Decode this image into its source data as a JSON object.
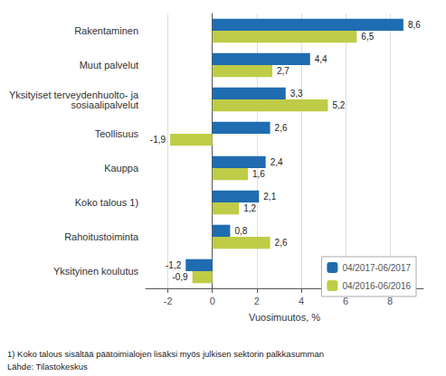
{
  "chart_data": {
    "type": "bar",
    "orientation": "horizontal",
    "categories": [
      "Rakentaminen",
      "Muut palvelut",
      "Yksityiset terveydenhuolto- ja\nsosiaalipalvelut",
      "Teollisuus",
      "Kauppa",
      "Koko talous 1)",
      "Rahoitustoiminta",
      "Yksityinen koulutus"
    ],
    "series": [
      {
        "name": "04/2017-06/2017",
        "color": "#1F6CB0",
        "values": [
          8.6,
          4.4,
          3.3,
          2.6,
          2.4,
          2.1,
          0.8,
          -1.2
        ],
        "value_labels": [
          "8,6",
          "4,4",
          "3,3",
          "2,6",
          "2,4",
          "2,1",
          "0,8",
          "-1,2"
        ]
      },
      {
        "name": "04/2016-06/2016",
        "color": "#BFCC47",
        "values": [
          6.5,
          2.7,
          5.2,
          -1.9,
          1.6,
          1.2,
          2.6,
          -0.9
        ],
        "value_labels": [
          "6,5",
          "2,7",
          "5,2",
          "-1,9",
          "1,6",
          "1,2",
          "2,6",
          "-0,9"
        ]
      }
    ],
    "xlabel": "Vuosimuutos, %",
    "xlim": [
      -3,
      9.5
    ],
    "xticks": [
      -2,
      0,
      2,
      4,
      6,
      8
    ],
    "grid": true,
    "legend": "lower right",
    "data_labels": true,
    "annotations": [
      "1) Koko talous sisältää päätoimialojen lisäksi myös julkisen sektorin palkkasumman",
      "Lähde: Tilastokeskus"
    ]
  }
}
